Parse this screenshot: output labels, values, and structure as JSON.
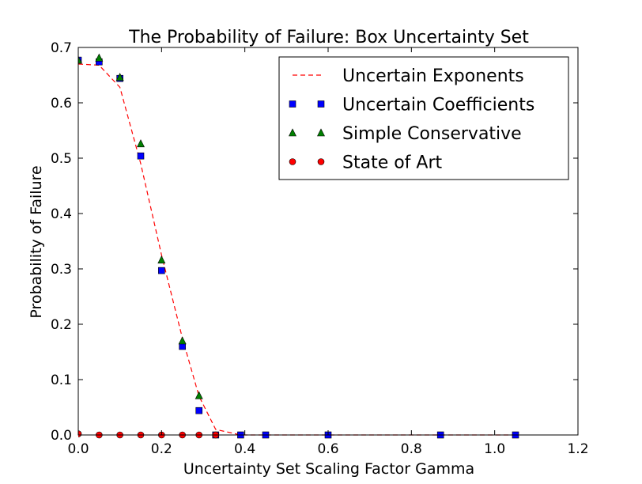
{
  "chart_data": {
    "type": "line",
    "title": "The Probability of Failure: Box Uncertainty Set",
    "xlabel": "Uncertainty Set Scaling Factor Gamma",
    "ylabel": "Probability of Failure",
    "xlim": [
      0.0,
      1.2
    ],
    "ylim": [
      0.0,
      0.7
    ],
    "xticks": [
      "0.0",
      "0.2",
      "0.4",
      "0.6",
      "0.8",
      "1.0",
      "1.2"
    ],
    "yticks": [
      "0.0",
      "0.1",
      "0.2",
      "0.3",
      "0.4",
      "0.5",
      "0.6",
      "0.7"
    ],
    "grid": false,
    "legend_position": "top-right",
    "series": [
      {
        "name": "Uncertain Exponents",
        "style": "dashed-line",
        "color": "#ff0000",
        "x": [
          0.0,
          0.05,
          0.1,
          0.15,
          0.2,
          0.25,
          0.29,
          0.33,
          0.39,
          0.45,
          0.6,
          0.87,
          1.05
        ],
        "y": [
          0.67,
          0.668,
          0.628,
          0.49,
          0.325,
          0.175,
          0.07,
          0.01,
          0.0,
          0.0,
          0.0,
          0.0,
          0.0
        ]
      },
      {
        "name": "Uncertain Coefficients",
        "style": "square",
        "color": "#0000ff",
        "x": [
          0.0,
          0.05,
          0.1,
          0.15,
          0.2,
          0.25,
          0.29,
          0.33,
          0.39,
          0.45,
          0.6,
          0.87,
          1.05
        ],
        "y": [
          0.677,
          0.674,
          0.644,
          0.504,
          0.297,
          0.16,
          0.044,
          0.0,
          0.0,
          0.0,
          0.0,
          0.0,
          0.0
        ]
      },
      {
        "name": "Simple Conservative",
        "style": "triangle",
        "color": "#008000",
        "x": [
          0.0,
          0.05,
          0.1,
          0.15,
          0.2,
          0.25,
          0.29
        ],
        "y": [
          0.677,
          0.681,
          0.646,
          0.526,
          0.316,
          0.17,
          0.071
        ]
      },
      {
        "name": "State of Art",
        "style": "circle",
        "color": "#ff0000",
        "x": [
          0.0,
          0.05,
          0.1,
          0.15,
          0.2,
          0.25,
          0.29,
          0.33
        ],
        "y": [
          0.002,
          0.0,
          0.0,
          0.0,
          0.0,
          0.0,
          0.0,
          0.0
        ]
      }
    ]
  }
}
